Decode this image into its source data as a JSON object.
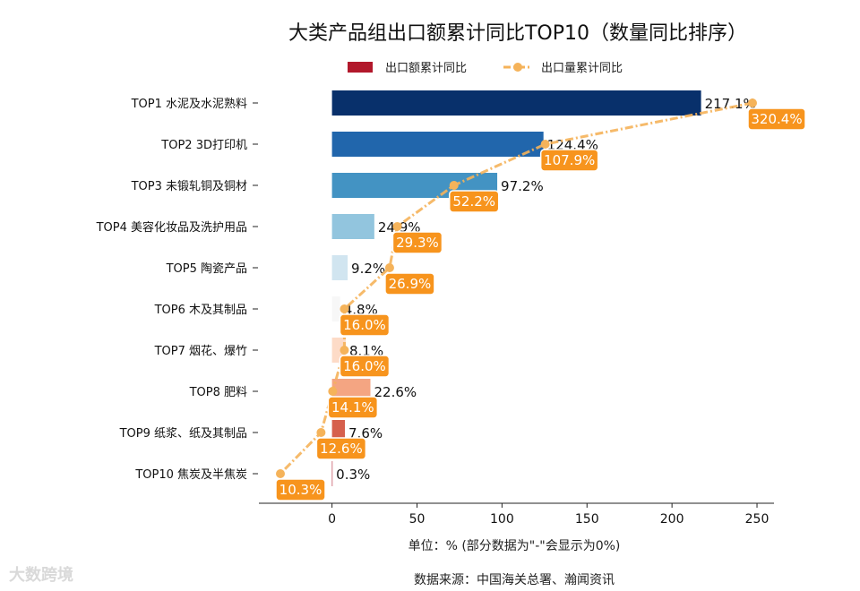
{
  "chart_data": {
    "type": "bar",
    "orientation": "horizontal",
    "title": "大类产品组出口额累计同比TOP10（数量同比排序）",
    "legend": [
      "出口额累计同比",
      "出口量累计同比"
    ],
    "categories": [
      "TOP1 水泥及水泥熟料",
      "TOP2 3D打印机",
      "TOP3 未锻轧铜及铜材",
      "TOP4 美容化妆品及洗护用品",
      "TOP5 陶瓷产品",
      "TOP6 木及其制品",
      "TOP7 烟花、爆竹",
      "TOP8 肥料",
      "TOP9 纸浆、纸及其制品",
      "TOP10 焦炭及半焦炭"
    ],
    "series": [
      {
        "name": "出口额累计同比",
        "type": "bar",
        "values": [
          217.1,
          124.4,
          97.2,
          24.9,
          9.2,
          4.8,
          8.1,
          22.6,
          7.6,
          0.3
        ],
        "labels": [
          "217.1%",
          "124.4%",
          "97.2%",
          "24.9%",
          "9.2%",
          "4.8%",
          "8.1%",
          "22.6%",
          "7.6%",
          "0.3%"
        ],
        "colors": [
          "#08306b",
          "#2166ac",
          "#4393c3",
          "#92c5de",
          "#d1e5f0",
          "#f7f7f7",
          "#fddbc7",
          "#f4a582",
          "#d6604d",
          "#b2182b"
        ]
      },
      {
        "name": "出口量累计同比",
        "type": "line",
        "values": [
          320.4,
          107.9,
          52.2,
          29.3,
          26.9,
          16.0,
          16.0,
          14.1,
          12.6,
          10.3
        ],
        "labels": [
          "320.4%",
          "107.9%",
          "52.2%",
          "29.3%",
          "26.9%",
          "16.0%",
          "16.0%",
          "14.1%",
          "12.6%",
          "10.3%"
        ],
        "color": "#f5b35a"
      }
    ],
    "xlim": [
      -43,
      260
    ],
    "xticks": [
      0,
      50,
      100,
      150,
      200,
      250
    ],
    "xlabel": "单位：%  (部分数据为\"-\"会显示为0%)",
    "source": "数据来源：中国海关总署、瀚闻资讯",
    "legend_swatch_color": "#b2182b",
    "label_box_color": "#f7941d"
  },
  "watermark": "大数跨境"
}
